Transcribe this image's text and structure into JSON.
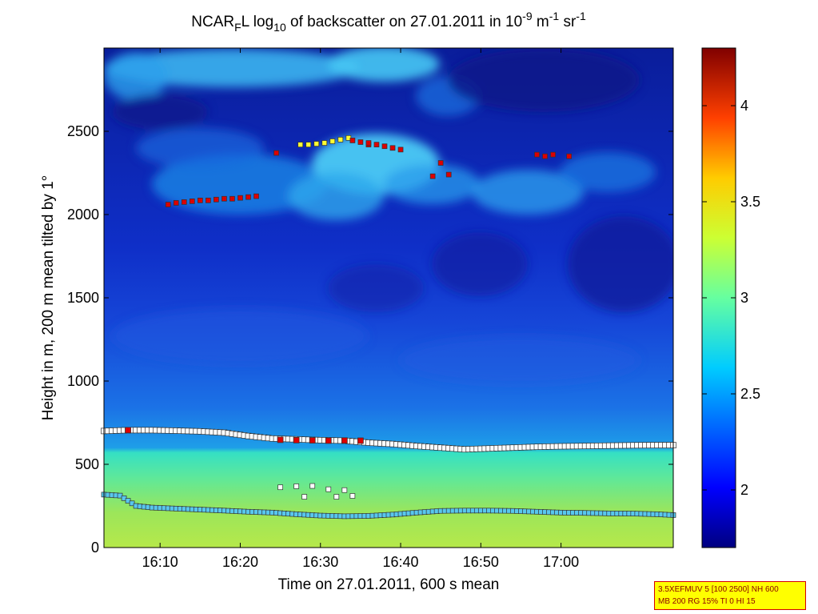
{
  "chart_data": {
    "type": "heatmap",
    "title": {
      "prefix": "NCAR",
      "sub_f": "F",
      "mid1": "L log",
      "sub_10": "10",
      "mid2": " of backscatter on 27.01.2011 in 10",
      "sup_m9": "-9",
      "mid3": " m",
      "sup_m1a": "-1",
      "mid4": " sr",
      "sup_m1b": "-1"
    },
    "xlabel": "Time on 27.01.2011, 600 s mean",
    "ylabel": "Height in m, 200 m mean tilted by 1°",
    "x_range_minutes_after_16h": [
      3,
      74
    ],
    "ylim": [
      0,
      3000
    ],
    "x_ticks": [
      {
        "value": 10,
        "label": "16:10"
      },
      {
        "value": 20,
        "label": "16:20"
      },
      {
        "value": 30,
        "label": "16:30"
      },
      {
        "value": 40,
        "label": "16:40"
      },
      {
        "value": 50,
        "label": "16:50"
      },
      {
        "value": 60,
        "label": "17:00"
      }
    ],
    "y_ticks": [
      {
        "value": 0,
        "label": "0"
      },
      {
        "value": 500,
        "label": "500"
      },
      {
        "value": 1000,
        "label": "1000"
      },
      {
        "value": 1500,
        "label": "1500"
      },
      {
        "value": 2000,
        "label": "2000"
      },
      {
        "value": 2500,
        "label": "2500"
      }
    ],
    "colorbar": {
      "range": [
        1.7,
        4.3
      ],
      "ticks": [
        {
          "value": 2,
          "label": "2"
        },
        {
          "value": 2.5,
          "label": "2.5"
        },
        {
          "value": 3,
          "label": "3"
        },
        {
          "value": 3.5,
          "label": "3.5"
        },
        {
          "value": 4,
          "label": "4"
        }
      ]
    },
    "layers": {
      "boundary_layer_top": 600,
      "surface_value": 3.15,
      "boundary_layer_value": 2.6,
      "free_troposphere_value": 2.05,
      "cloud_value": 2.55
    },
    "marker_series": [
      {
        "name": "layer-700m",
        "color": "#ffffff",
        "size": 7,
        "points": [
          [
            3,
            700
          ],
          [
            6,
            705
          ],
          [
            9,
            705
          ],
          [
            12,
            702
          ],
          [
            15,
            698
          ],
          [
            18,
            690
          ],
          [
            21,
            670
          ],
          [
            24,
            655
          ],
          [
            27,
            650
          ],
          [
            30,
            645
          ],
          [
            33,
            642
          ],
          [
            36,
            630
          ],
          [
            39,
            622
          ],
          [
            42,
            610
          ],
          [
            45,
            600
          ],
          [
            48,
            590
          ],
          [
            51,
            595
          ],
          [
            54,
            600
          ],
          [
            57,
            605
          ],
          [
            60,
            608
          ],
          [
            63,
            610
          ],
          [
            66,
            612
          ],
          [
            69,
            614
          ],
          [
            72,
            615
          ],
          [
            74,
            615
          ]
        ]
      },
      {
        "name": "layer-700m-red",
        "color": "#dd0000",
        "size": 7,
        "points": [
          [
            6,
            705
          ],
          [
            25,
            647
          ],
          [
            27,
            645
          ],
          [
            29,
            644
          ],
          [
            31,
            642
          ],
          [
            33,
            643
          ],
          [
            35,
            642
          ]
        ]
      },
      {
        "name": "layer-300m",
        "color": "#58c7ee",
        "size": 6,
        "points": [
          [
            3,
            318
          ],
          [
            5,
            312
          ],
          [
            7,
            250
          ],
          [
            9,
            240
          ],
          [
            12,
            234
          ],
          [
            15,
            228
          ],
          [
            18,
            222
          ],
          [
            21,
            215
          ],
          [
            24,
            210
          ],
          [
            27,
            200
          ],
          [
            30,
            192
          ],
          [
            33,
            188
          ],
          [
            36,
            190
          ],
          [
            39,
            198
          ],
          [
            42,
            210
          ],
          [
            45,
            220
          ],
          [
            48,
            222
          ],
          [
            51,
            222
          ],
          [
            54,
            220
          ],
          [
            57,
            215
          ],
          [
            60,
            210
          ],
          [
            63,
            208
          ],
          [
            66,
            205
          ],
          [
            69,
            204
          ],
          [
            72,
            200
          ],
          [
            74,
            195
          ]
        ]
      },
      {
        "name": "layer-350m",
        "color": "#ffffff",
        "size": 6,
        "points": [
          [
            25,
            362
          ],
          [
            27,
            368
          ],
          [
            29,
            370
          ],
          [
            31,
            350
          ],
          [
            33,
            345
          ],
          [
            28,
            305
          ],
          [
            32,
            305
          ],
          [
            34,
            310
          ]
        ]
      },
      {
        "name": "cloud-base-2100m",
        "color": "#dd0000",
        "size": 6,
        "points": [
          [
            11,
            2060
          ],
          [
            12,
            2070
          ],
          [
            13,
            2075
          ],
          [
            14,
            2080
          ],
          [
            15,
            2085
          ],
          [
            16,
            2085
          ],
          [
            17,
            2090
          ],
          [
            18,
            2095
          ],
          [
            19,
            2095
          ],
          [
            20,
            2100
          ],
          [
            21,
            2105
          ],
          [
            22,
            2110
          ],
          [
            24.5,
            2370
          ],
          [
            36,
            2420
          ],
          [
            37,
            2420
          ],
          [
            38,
            2410
          ],
          [
            39,
            2400
          ],
          [
            40,
            2390
          ],
          [
            44,
            2230
          ],
          [
            45,
            2310
          ],
          [
            46,
            2240
          ],
          [
            57,
            2360
          ],
          [
            58,
            2350
          ],
          [
            59,
            2360
          ],
          [
            61,
            2350
          ]
        ]
      },
      {
        "name": "cloud-base-2430m",
        "color": "#ffff33",
        "size": 6,
        "points": [
          [
            27.5,
            2420
          ],
          [
            28.5,
            2420
          ],
          [
            29.5,
            2425
          ],
          [
            30.5,
            2430
          ],
          [
            31.5,
            2440
          ],
          [
            32.5,
            2450
          ],
          [
            33.5,
            2460
          ]
        ]
      },
      {
        "name": "cloud-base-2440m-red",
        "color": "#dd0000",
        "size": 6,
        "points": [
          [
            34,
            2445
          ],
          [
            35,
            2435
          ],
          [
            36,
            2430
          ]
        ]
      }
    ]
  },
  "info_box": {
    "line1": "3.5XEFMUV 5 [100 2500] NH 600",
    "line2": "MB 200 RG 15% TI 0 HI 15"
  },
  "colors": {
    "background": "#ffffff",
    "info_box_bg": "#ffff00",
    "info_box_border": "#d40000",
    "info_box_text": "#8b0000"
  }
}
